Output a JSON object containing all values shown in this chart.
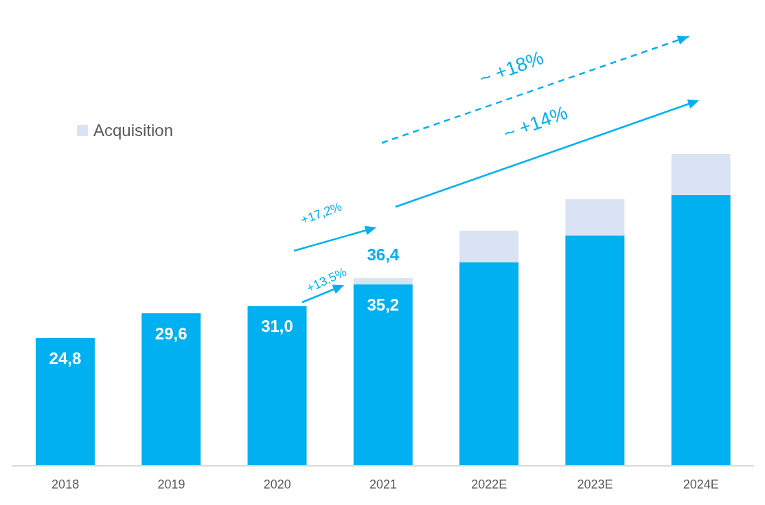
{
  "chart_data": {
    "type": "bar",
    "stacked": true,
    "categories": [
      "2018",
      "2019",
      "2020",
      "2021",
      "2022E",
      "2023E",
      "2024E"
    ],
    "series": [
      {
        "color": "#00b0f0",
        "values": [
          24.8,
          29.6,
          31.0,
          35.2,
          39.5,
          44.7,
          52.5
        ],
        "value_labels": [
          "24,8",
          "29,6",
          "31,0",
          "35,2",
          null,
          null,
          null
        ]
      },
      {
        "name": "Acquisition",
        "color": "#dae3f3",
        "values": [
          null,
          null,
          null,
          1.2,
          6.1,
          7.0,
          8.0
        ]
      }
    ],
    "totals": [
      null,
      null,
      null,
      "36,4",
      null,
      null,
      null
    ],
    "annotations": [
      "~ +18%",
      "~ +14%",
      "+17,2%",
      "+13,5%"
    ],
    "legend": "top left",
    "grid": false,
    "tick_labels": "x"
  }
}
